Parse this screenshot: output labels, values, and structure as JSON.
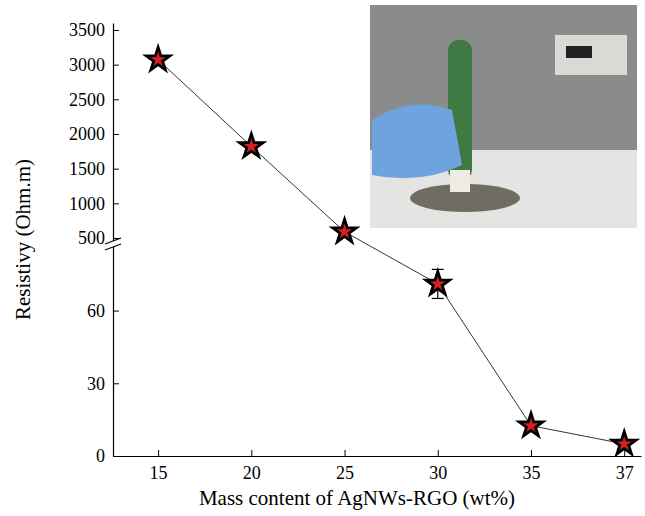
{
  "chart_data": {
    "type": "line",
    "x_label": "Mass content of AgNWs-RGO (wt%)",
    "y_label": "Resistivy (Ohm.m)",
    "categories": [
      "15",
      "20",
      "25",
      "30",
      "35",
      "37"
    ],
    "values": [
      3070,
      1820,
      590,
      71,
      12.5,
      5
    ],
    "errors": [
      20,
      25,
      15,
      6,
      1.5,
      1
    ],
    "color": "#000000",
    "marker": "star",
    "line_style": "solid",
    "ylim": [
      0,
      3600
    ],
    "ybreak": [
      85,
      500
    ],
    "yticks": [
      0,
      30,
      60,
      500,
      1000,
      1500,
      2000,
      2500,
      3000,
      3500
    ],
    "grid": false
  }
}
